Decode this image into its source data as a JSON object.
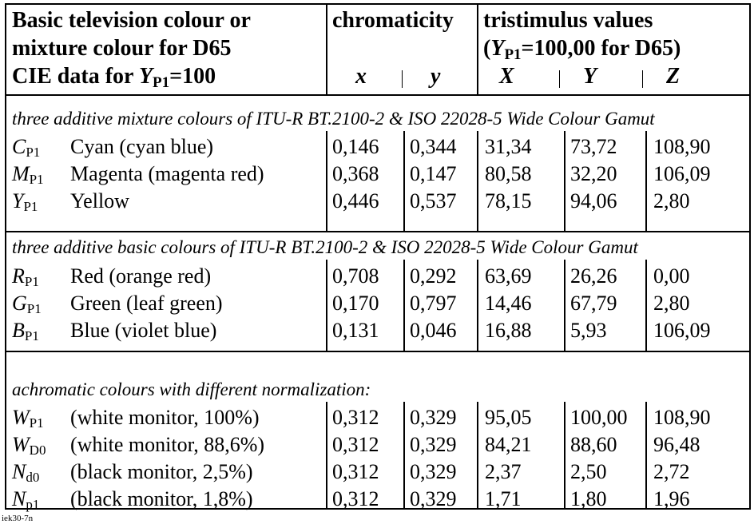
{
  "header": {
    "line1": "Basic television colour or",
    "line2": "mixture colour for D65",
    "line3_pre": "CIE data for ",
    "line3_sym": "Y",
    "line3_sub": "P1",
    "line3_post": "=100",
    "chromaticity": "chromaticity",
    "tristimulus": "tristimulus values",
    "trist_pre": "(",
    "trist_sym": "Y",
    "trist_sub": "P1",
    "trist_post": "=100,00 for D65)",
    "col_x": "x",
    "col_y": "y",
    "col_X": "X",
    "col_Y": "Y",
    "col_Z": "Z"
  },
  "sections": [
    {
      "title": "three additive mixture colours of ITU-R BT.2100-2 & ISO 22028-5 Wide Colour Gamut",
      "rows": [
        {
          "sym": "C",
          "sub": "P1",
          "name": "Cyan (cyan blue)",
          "x": "0,146",
          "y": "0,344",
          "X": "31,34",
          "Y": "73,72",
          "Z": "108,90"
        },
        {
          "sym": "M",
          "sub": "P1",
          "name": "Magenta (magenta red)",
          "x": "0,368",
          "y": "0,147",
          "X": "80,58",
          "Y": "32,20",
          "Z": "106,09"
        },
        {
          "sym": "Y",
          "sub": "P1",
          "name": "Yellow",
          "x": "0,446",
          "y": "0,537",
          "X": "78,15",
          "Y": "94,06",
          "Z": "2,80"
        }
      ]
    },
    {
      "title": "three additive basic colours of ITU-R BT.2100-2 & ISO 22028-5 Wide Colour Gamut",
      "rows": [
        {
          "sym": "R",
          "sub": "P1",
          "name": "Red (orange red)",
          "x": "0,708",
          "y": "0,292",
          "X": "63,69",
          "Y": "26,26",
          "Z": "0,00"
        },
        {
          "sym": "G",
          "sub": "P1",
          "name": "Green (leaf green)",
          "x": "0,170",
          "y": "0,797",
          "X": "14,46",
          "Y": "67,79",
          "Z": "2,80"
        },
        {
          "sym": "B",
          "sub": "P1",
          "name": "Blue (violet blue)",
          "x": "0,131",
          "y": "0,046",
          "X": "16,88",
          "Y": "5,93",
          "Z": "106,09"
        }
      ]
    },
    {
      "title": "achromatic colours with different normalization:",
      "rows": [
        {
          "sym": "W",
          "sub": "P1",
          "name": "(white monitor, 100%)",
          "x": "0,312",
          "y": "0,329",
          "X": "95,05",
          "Y": "100,00",
          "Z": "108,90"
        },
        {
          "sym": "W",
          "sub": "D0",
          "name": "(white monitor, 88,6%)",
          "x": "0,312",
          "y": "0,329",
          "X": "84,21",
          "Y": "88,60",
          "Z": "96,48"
        },
        {
          "sym": "N",
          "sub": "d0",
          "name": "(black monitor, 2,5%)",
          "x": "0,312",
          "y": "0,329",
          "X": "2,37",
          "Y": "2,50",
          "Z": "2,72"
        },
        {
          "sym": "N",
          "sub": "p1",
          "name": "(black monitor, 1,8%)",
          "x": "0,312",
          "y": "0,329",
          "X": "1,71",
          "Y": "1,80",
          "Z": "1,96"
        }
      ]
    }
  ],
  "footer": "iek30-7n"
}
